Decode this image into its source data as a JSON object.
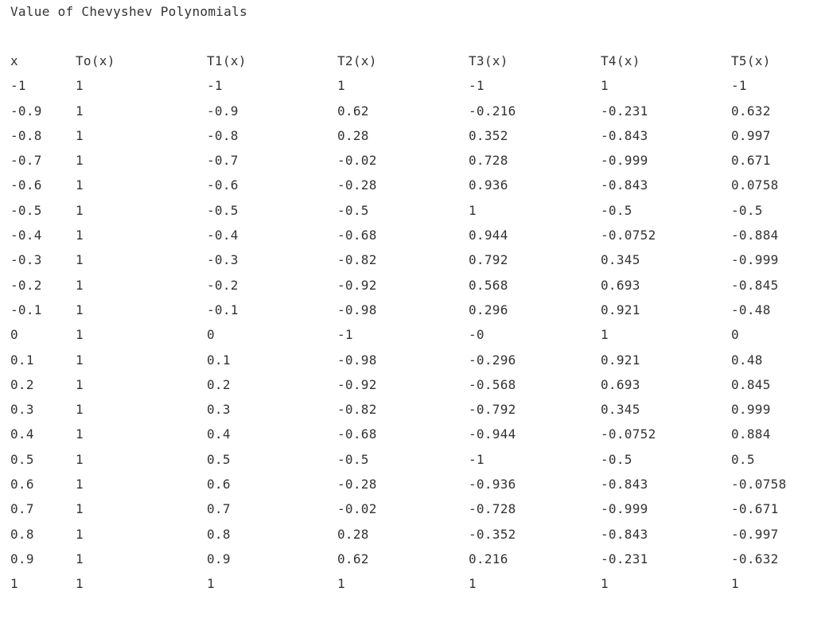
{
  "title": "Value of Chevyshev Polynomials",
  "table": {
    "headers": [
      "x",
      "To(x)",
      "T1(x)",
      "T2(x)",
      "T3(x)",
      "T4(x)",
      "T5(x)"
    ],
    "rows": [
      [
        "-1",
        "1",
        "-1",
        "1",
        "-1",
        "1",
        "-1"
      ],
      [
        "-0.9",
        "1",
        "-0.9",
        "0.62",
        "-0.216",
        "-0.231",
        "0.632"
      ],
      [
        "-0.8",
        "1",
        "-0.8",
        "0.28",
        "0.352",
        "-0.843",
        "0.997"
      ],
      [
        "-0.7",
        "1",
        "-0.7",
        "-0.02",
        "0.728",
        "-0.999",
        "0.671"
      ],
      [
        "-0.6",
        "1",
        "-0.6",
        "-0.28",
        "0.936",
        "-0.843",
        "0.0758"
      ],
      [
        "-0.5",
        "1",
        "-0.5",
        "-0.5",
        "1",
        "-0.5",
        "-0.5"
      ],
      [
        "-0.4",
        "1",
        "-0.4",
        "-0.68",
        "0.944",
        "-0.0752",
        "-0.884"
      ],
      [
        "-0.3",
        "1",
        "-0.3",
        "-0.82",
        "0.792",
        "0.345",
        "-0.999"
      ],
      [
        "-0.2",
        "1",
        "-0.2",
        "-0.92",
        "0.568",
        "0.693",
        "-0.845"
      ],
      [
        "-0.1",
        "1",
        "-0.1",
        "-0.98",
        "0.296",
        "0.921",
        "-0.48"
      ],
      [
        "0",
        "1",
        "0",
        "-1",
        "-0",
        "1",
        "0"
      ],
      [
        "0.1",
        "1",
        "0.1",
        "-0.98",
        "-0.296",
        "0.921",
        "0.48"
      ],
      [
        "0.2",
        "1",
        "0.2",
        "-0.92",
        "-0.568",
        "0.693",
        "0.845"
      ],
      [
        "0.3",
        "1",
        "0.3",
        "-0.82",
        "-0.792",
        "0.345",
        "0.999"
      ],
      [
        "0.4",
        "1",
        "0.4",
        "-0.68",
        "-0.944",
        "-0.0752",
        "0.884"
      ],
      [
        "0.5",
        "1",
        "0.5",
        "-0.5",
        "-1",
        "-0.5",
        "0.5"
      ],
      [
        "0.6",
        "1",
        "0.6",
        "-0.28",
        "-0.936",
        "-0.843",
        "-0.0758"
      ],
      [
        "0.7",
        "1",
        "0.7",
        "-0.02",
        "-0.728",
        "-0.999",
        "-0.671"
      ],
      [
        "0.8",
        "1",
        "0.8",
        "0.28",
        "-0.352",
        "-0.843",
        "-0.997"
      ],
      [
        "0.9",
        "1",
        "0.9",
        "0.62",
        "0.216",
        "-0.231",
        "-0.632"
      ],
      [
        "1",
        "1",
        "1",
        "1",
        "1",
        "1",
        "1"
      ]
    ]
  }
}
